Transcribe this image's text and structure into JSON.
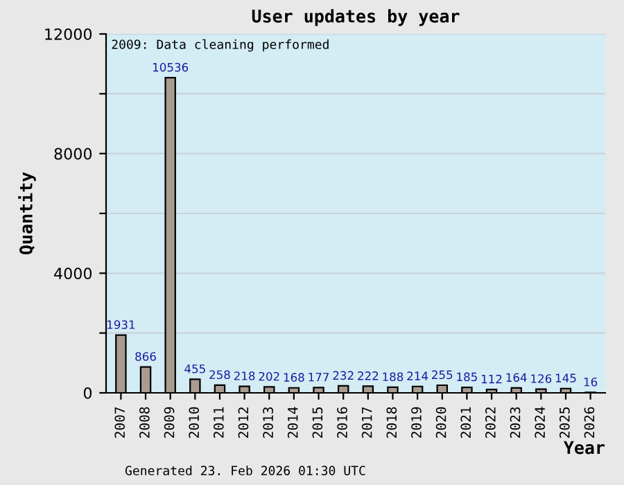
{
  "chart_data": {
    "type": "bar",
    "title": "User updates by year",
    "xlabel": "Year",
    "ylabel": "Quantity",
    "categories": [
      "2007",
      "2008",
      "2009",
      "2010",
      "2011",
      "2012",
      "2013",
      "2014",
      "2015",
      "2016",
      "2017",
      "2018",
      "2019",
      "2020",
      "2021",
      "2022",
      "2023",
      "2024",
      "2025",
      "2026"
    ],
    "values": [
      1931,
      866,
      10536,
      455,
      258,
      218,
      202,
      168,
      177,
      232,
      222,
      188,
      214,
      255,
      185,
      112,
      164,
      126,
      145,
      16
    ],
    "color": "#a89c90",
    "data_labels": true,
    "ylim": [
      0,
      12000
    ],
    "yticks": [
      0,
      {
        "value": 2000,
        "label": null
      },
      4000,
      {
        "value": 6000,
        "label": null
      },
      8000,
      {
        "value": 10000,
        "label": null
      },
      12000
    ],
    "grid": "y",
    "annotations": [
      "2009: Data cleaning performed",
      "Generated 23. Feb 2026 01:30 UTC"
    ]
  }
}
